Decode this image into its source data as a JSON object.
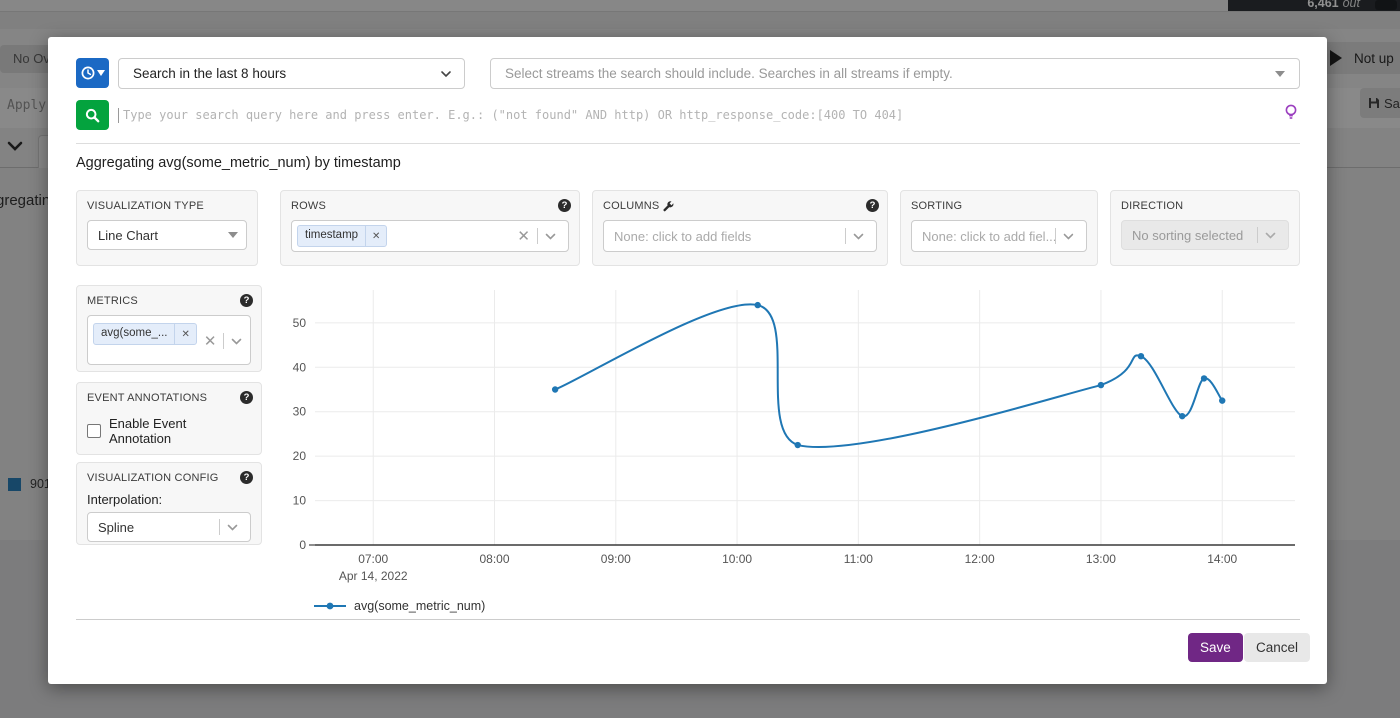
{
  "backdrop": {
    "throughput_value": "6,461",
    "throughput_unit": "out",
    "no_override_fragment": "No Ov",
    "refresh_fragment": "Not up",
    "save_fragment": "Sa",
    "query_fragment": "Apply f",
    "new_tab_label": "+",
    "heading_fragment": "gregating",
    "legend_fragment": "901"
  },
  "modal": {
    "timerange_selected": "Search in the last 8 hours",
    "streams_placeholder": "Select streams the search should include. Searches in all streams if empty.",
    "query_placeholder": "Type your search query here and press enter. E.g.: (\"not found\" AND http) OR http_response_code:[400 TO 404]",
    "heading": "Aggregating avg(some_metric_num) by timestamp",
    "panels": {
      "visualization_type": {
        "label": "VISUALIZATION TYPE",
        "value": "Line Chart"
      },
      "rows": {
        "label": "ROWS",
        "chips": [
          "timestamp"
        ]
      },
      "columns": {
        "label": "COLUMNS",
        "placeholder": "None: click to add fields"
      },
      "sorting": {
        "label": "SORTING",
        "placeholder": "None: click to add fiel..."
      },
      "direction": {
        "label": "DIRECTION",
        "value": "No sorting selected"
      },
      "metrics": {
        "label": "METRICS",
        "chips": [
          "avg(some_..."
        ]
      },
      "event_annotations": {
        "label": "EVENT ANNOTATIONS",
        "checkbox_label": "Enable Event Annotation",
        "checked": false
      },
      "visualization_config": {
        "label": "VISUALIZATION CONFIG",
        "interpolation_label": "Interpolation:",
        "interpolation_value": "Spline"
      }
    },
    "buttons": {
      "save": "Save",
      "cancel": "Cancel"
    }
  },
  "chart_data": {
    "type": "line",
    "interpolation": "spline",
    "line_color": "#1f77b4",
    "x_unit": "hour of day, Apr 14 2022",
    "series": [
      {
        "name": "avg(some_metric_num)",
        "points": [
          [
            8.5,
            35
          ],
          [
            10.17,
            54
          ],
          [
            10.5,
            22.5
          ],
          [
            13.0,
            36
          ],
          [
            13.33,
            42.5
          ],
          [
            13.67,
            29
          ],
          [
            13.85,
            37.5
          ],
          [
            14.0,
            32.5
          ]
        ]
      }
    ],
    "x_ticks": [
      {
        "v": 7,
        "label": "07:00"
      },
      {
        "v": 8,
        "label": "08:00"
      },
      {
        "v": 9,
        "label": "09:00"
      },
      {
        "v": 10,
        "label": "10:00"
      },
      {
        "v": 11,
        "label": "11:00"
      },
      {
        "v": 12,
        "label": "12:00"
      },
      {
        "v": 13,
        "label": "13:00"
      },
      {
        "v": 14,
        "label": "14:00"
      }
    ],
    "x_axis_sub_label": "Apr 14, 2022",
    "y_ticks": [
      0,
      10,
      20,
      30,
      40,
      50
    ],
    "x_range": [
      6.52,
      14.6
    ],
    "y_range": [
      0,
      57.4
    ],
    "grid": true,
    "legend_position": "bottom-left",
    "legend": [
      "avg(some_metric_num)"
    ]
  }
}
